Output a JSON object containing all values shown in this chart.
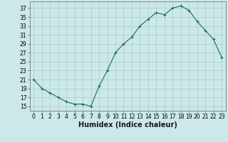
{
  "x": [
    0,
    1,
    2,
    3,
    4,
    5,
    6,
    7,
    8,
    9,
    10,
    11,
    12,
    13,
    14,
    15,
    16,
    17,
    18,
    19,
    20,
    21,
    22,
    23
  ],
  "y": [
    21,
    19,
    18,
    17,
    16,
    15.5,
    15.5,
    15,
    19.5,
    23,
    27,
    29,
    30.5,
    33,
    34.5,
    36,
    35.5,
    37,
    37.5,
    36.5,
    34,
    32,
    30,
    26
  ],
  "line_color": "#1a6b5a",
  "bg_color": "#cce8e8",
  "grid_color_major": "#aacccc",
  "grid_color_minor": "#bbdddd",
  "xlabel": "Humidex (Indice chaleur)",
  "ylabel_ticks": [
    15,
    17,
    19,
    21,
    23,
    25,
    27,
    29,
    31,
    33,
    35,
    37
  ],
  "ylim": [
    14.0,
    38.5
  ],
  "xlim": [
    -0.5,
    23.5
  ],
  "tick_fontsize": 5.5,
  "xlabel_fontsize": 7.0
}
